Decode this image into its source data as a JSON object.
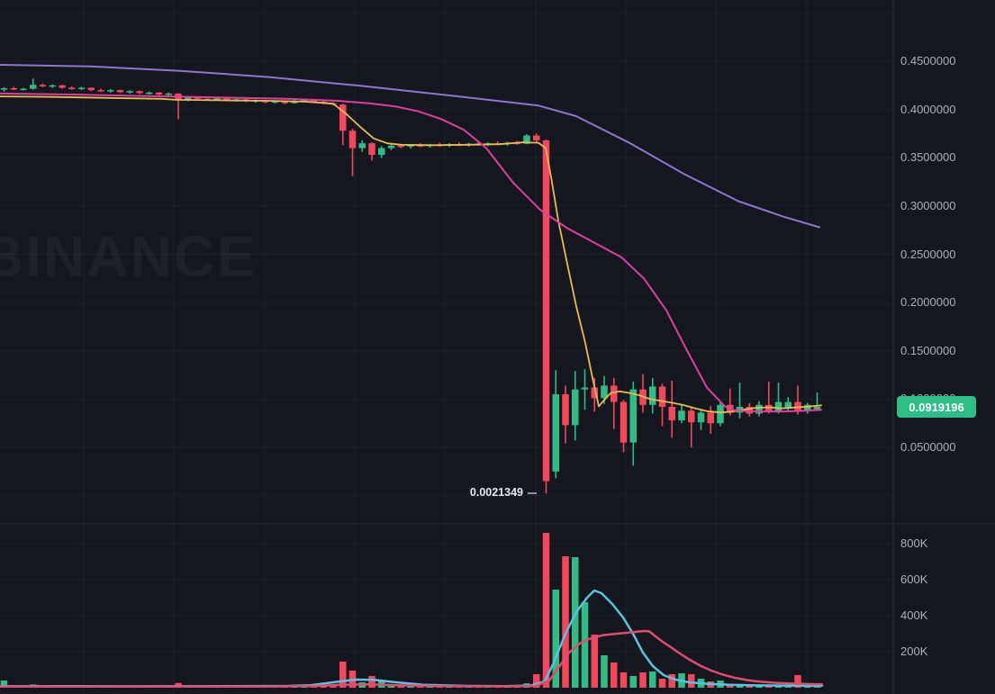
{
  "watermark": "BINANCE",
  "last_price_label": "0.0919196",
  "colors": {
    "background": "#14171e",
    "grid": "rgba(160,172,196,0.07)",
    "axis_line": "#2a2e38",
    "axis_text": "#a9b0bd",
    "up": "#2ebd85",
    "down": "#f6465d",
    "ma_yellow": "#e9bb4f",
    "ma_pink": "#df3da4",
    "ma_purple": "#9273d4",
    "vol_cyan": "#56c4e2",
    "vol_rose": "#e34b70",
    "badge_bg": "#2ebd85",
    "badge_text": "#ffffff",
    "low_label_text": "#e6e9f0"
  },
  "chart_data": {
    "type": "candlestick",
    "exchange_watermark": "BINANCE",
    "last_price": 0.0919196,
    "session_low": {
      "label": "0.0021349",
      "price": 0.0021349
    },
    "price_axis": {
      "ticks": [
        {
          "label": "0.4500000",
          "price": 0.45
        },
        {
          "label": "0.4000000",
          "price": 0.4
        },
        {
          "label": "0.3500000",
          "price": 0.35
        },
        {
          "label": "0.3000000",
          "price": 0.3
        },
        {
          "label": "0.2500000",
          "price": 0.25
        },
        {
          "label": "0.2000000",
          "price": 0.2
        },
        {
          "label": "0.1500000",
          "price": 0.15
        },
        {
          "label": "0.1000000",
          "price": 0.1
        },
        {
          "label": "0.0500000",
          "price": 0.05
        }
      ],
      "gridline_prices": [
        0.5,
        0.45,
        0.4,
        0.35,
        0.3,
        0.25,
        0.2,
        0.15,
        0.1,
        0.05,
        0.0
      ]
    },
    "volume_axis": {
      "unit": "K",
      "ticks": [
        {
          "label": "800K",
          "value": 800
        },
        {
          "label": "600K",
          "value": 600
        },
        {
          "label": "400K",
          "value": 400
        },
        {
          "label": "200K",
          "value": 200
        }
      ]
    },
    "candles_format": [
      "open",
      "high",
      "low",
      "close",
      "volume_K"
    ],
    "candles": [
      [
        0.4205,
        0.423,
        0.4185,
        0.422,
        40
      ],
      [
        0.422,
        0.4235,
        0.42,
        0.421,
        12
      ],
      [
        0.421,
        0.4225,
        0.4195,
        0.4215,
        10
      ],
      [
        0.4215,
        0.432,
        0.4205,
        0.4255,
        18
      ],
      [
        0.4255,
        0.427,
        0.423,
        0.424,
        10
      ],
      [
        0.424,
        0.426,
        0.4225,
        0.425,
        9
      ],
      [
        0.425,
        0.4255,
        0.4215,
        0.4225,
        11
      ],
      [
        0.4225,
        0.424,
        0.4205,
        0.4215,
        10
      ],
      [
        0.4215,
        0.4235,
        0.42,
        0.4225,
        9
      ],
      [
        0.4225,
        0.423,
        0.419,
        0.42,
        12
      ],
      [
        0.42,
        0.4215,
        0.418,
        0.419,
        10
      ],
      [
        0.419,
        0.421,
        0.4175,
        0.42,
        9
      ],
      [
        0.42,
        0.4205,
        0.417,
        0.418,
        10
      ],
      [
        0.418,
        0.42,
        0.4165,
        0.419,
        8
      ],
      [
        0.419,
        0.4195,
        0.416,
        0.417,
        10
      ],
      [
        0.417,
        0.4185,
        0.4155,
        0.4175,
        9
      ],
      [
        0.4175,
        0.418,
        0.4145,
        0.4155,
        11
      ],
      [
        0.4155,
        0.4175,
        0.414,
        0.4165,
        9
      ],
      [
        0.4165,
        0.417,
        0.39,
        0.41,
        26
      ],
      [
        0.41,
        0.414,
        0.4085,
        0.4125,
        14
      ],
      [
        0.4125,
        0.4135,
        0.41,
        0.411,
        10
      ],
      [
        0.411,
        0.4125,
        0.4095,
        0.4105,
        9
      ],
      [
        0.4105,
        0.412,
        0.409,
        0.4115,
        8
      ],
      [
        0.4115,
        0.412,
        0.4085,
        0.4095,
        10
      ],
      [
        0.4095,
        0.4115,
        0.408,
        0.4105,
        8
      ],
      [
        0.4105,
        0.411,
        0.4075,
        0.4085,
        9
      ],
      [
        0.4085,
        0.4105,
        0.407,
        0.4095,
        8
      ],
      [
        0.4095,
        0.41,
        0.4065,
        0.4075,
        10
      ],
      [
        0.4075,
        0.4095,
        0.406,
        0.4085,
        8
      ],
      [
        0.4085,
        0.409,
        0.4055,
        0.4065,
        9
      ],
      [
        0.4065,
        0.41,
        0.406,
        0.409,
        12
      ],
      [
        0.409,
        0.411,
        0.408,
        0.41,
        11
      ],
      [
        0.41,
        0.4105,
        0.407,
        0.408,
        10
      ],
      [
        0.408,
        0.409,
        0.4055,
        0.4065,
        9
      ],
      [
        0.4065,
        0.4075,
        0.404,
        0.405,
        14
      ],
      [
        0.405,
        0.406,
        0.363,
        0.378,
        145
      ],
      [
        0.378,
        0.38,
        0.331,
        0.36,
        95
      ],
      [
        0.36,
        0.368,
        0.356,
        0.365,
        30
      ],
      [
        0.365,
        0.366,
        0.347,
        0.353,
        65
      ],
      [
        0.353,
        0.362,
        0.35,
        0.36,
        35
      ],
      [
        0.36,
        0.364,
        0.358,
        0.3625,
        18
      ],
      [
        0.3625,
        0.3645,
        0.36,
        0.3615,
        12
      ],
      [
        0.3615,
        0.364,
        0.3595,
        0.363,
        10
      ],
      [
        0.363,
        0.365,
        0.361,
        0.362,
        9
      ],
      [
        0.362,
        0.3645,
        0.3605,
        0.3635,
        8
      ],
      [
        0.3635,
        0.3655,
        0.3615,
        0.3625,
        9
      ],
      [
        0.3625,
        0.365,
        0.361,
        0.364,
        8
      ],
      [
        0.364,
        0.366,
        0.362,
        0.363,
        8
      ],
      [
        0.363,
        0.3655,
        0.3615,
        0.3645,
        7
      ],
      [
        0.3645,
        0.3665,
        0.3625,
        0.3635,
        8
      ],
      [
        0.3635,
        0.366,
        0.362,
        0.365,
        7
      ],
      [
        0.365,
        0.367,
        0.363,
        0.364,
        8
      ],
      [
        0.364,
        0.3665,
        0.3625,
        0.3655,
        7
      ],
      [
        0.3655,
        0.3675,
        0.3635,
        0.3645,
        8
      ],
      [
        0.3645,
        0.3745,
        0.364,
        0.373,
        24
      ],
      [
        0.373,
        0.375,
        0.3655,
        0.368,
        75
      ],
      [
        0.368,
        0.369,
        0.0021349,
        0.015,
        860
      ],
      [
        0.025,
        0.13,
        0.018,
        0.105,
        545
      ],
      [
        0.105,
        0.114,
        0.054,
        0.073,
        730
      ],
      [
        0.073,
        0.129,
        0.057,
        0.11,
        725
      ],
      [
        0.11,
        0.131,
        0.089,
        0.112,
        475
      ],
      [
        0.112,
        0.122,
        0.087,
        0.101,
        295
      ],
      [
        0.101,
        0.124,
        0.095,
        0.114,
        180
      ],
      [
        0.114,
        0.122,
        0.069,
        0.097,
        140
      ],
      [
        0.097,
        0.099,
        0.045,
        0.055,
        85
      ],
      [
        0.055,
        0.118,
        0.031,
        0.11,
        65
      ],
      [
        0.11,
        0.126,
        0.086,
        0.094,
        85
      ],
      [
        0.094,
        0.122,
        0.085,
        0.113,
        90
      ],
      [
        0.113,
        0.116,
        0.072,
        0.092,
        50
      ],
      [
        0.092,
        0.119,
        0.06,
        0.078,
        75
      ],
      [
        0.078,
        0.095,
        0.075,
        0.088,
        80
      ],
      [
        0.088,
        0.092,
        0.05,
        0.076,
        75
      ],
      [
        0.076,
        0.09,
        0.068,
        0.086,
        50
      ],
      [
        0.086,
        0.093,
        0.064,
        0.075,
        35
      ],
      [
        0.075,
        0.098,
        0.072,
        0.094,
        40
      ],
      [
        0.094,
        0.111,
        0.083,
        0.086,
        22
      ],
      [
        0.086,
        0.117,
        0.08,
        0.092,
        18
      ],
      [
        0.092,
        0.096,
        0.082,
        0.085,
        15
      ],
      [
        0.085,
        0.098,
        0.082,
        0.094,
        14
      ],
      [
        0.094,
        0.118,
        0.085,
        0.087,
        13
      ],
      [
        0.087,
        0.117,
        0.085,
        0.097,
        12
      ],
      [
        0.09,
        0.102,
        0.087,
        0.097,
        12
      ],
      [
        0.097,
        0.114,
        0.084,
        0.088,
        70
      ],
      [
        0.088,
        0.096,
        0.085,
        0.094,
        15
      ],
      [
        0.0895,
        0.107,
        0.088,
        0.0919196,
        18
      ]
    ],
    "ma_overlays": [
      {
        "name": "ma-fast-yellow",
        "color_key": "ma_yellow",
        "width": 1.8,
        "points": [
          [
            0,
            0.4135
          ],
          [
            60,
            0.413
          ],
          [
            120,
            0.412
          ],
          [
            180,
            0.411
          ],
          [
            195,
            0.41
          ],
          [
            240,
            0.4095
          ],
          [
            300,
            0.409
          ],
          [
            340,
            0.408
          ],
          [
            370,
            0.406
          ],
          [
            385,
            0.395
          ],
          [
            400,
            0.382
          ],
          [
            415,
            0.37
          ],
          [
            430,
            0.365
          ],
          [
            445,
            0.3635
          ],
          [
            480,
            0.363
          ],
          [
            520,
            0.3635
          ],
          [
            555,
            0.364
          ],
          [
            580,
            0.366
          ],
          [
            598,
            0.3655
          ],
          [
            606,
            0.36
          ],
          [
            612,
            0.33
          ],
          [
            620,
            0.285
          ],
          [
            630,
            0.24
          ],
          [
            640,
            0.196
          ],
          [
            650,
            0.158
          ],
          [
            658,
            0.122
          ],
          [
            665,
            0.0925
          ],
          [
            670,
            0.098
          ],
          [
            678,
            0.106
          ],
          [
            688,
            0.108
          ],
          [
            698,
            0.1065
          ],
          [
            710,
            0.104
          ],
          [
            722,
            0.1
          ],
          [
            735,
            0.098
          ],
          [
            748,
            0.096
          ],
          [
            760,
            0.0935
          ],
          [
            772,
            0.0905
          ],
          [
            785,
            0.0875
          ],
          [
            800,
            0.0862
          ],
          [
            812,
            0.0868
          ],
          [
            825,
            0.089
          ],
          [
            840,
            0.091
          ],
          [
            855,
            0.0915
          ],
          [
            868,
            0.0905
          ],
          [
            880,
            0.0912
          ],
          [
            895,
            0.092
          ],
          [
            912,
            0.0935
          ]
        ]
      },
      {
        "name": "ma-mid-pink",
        "color_key": "ma_pink",
        "width": 2,
        "points": [
          [
            0,
            0.4165
          ],
          [
            80,
            0.4155
          ],
          [
            160,
            0.414
          ],
          [
            240,
            0.4125
          ],
          [
            320,
            0.411
          ],
          [
            375,
            0.409
          ],
          [
            410,
            0.4065
          ],
          [
            440,
            0.403
          ],
          [
            465,
            0.398
          ],
          [
            490,
            0.39
          ],
          [
            515,
            0.379
          ],
          [
            540,
            0.36
          ],
          [
            570,
            0.324
          ],
          [
            600,
            0.296
          ],
          [
            630,
            0.277
          ],
          [
            660,
            0.262
          ],
          [
            690,
            0.247
          ],
          [
            715,
            0.225
          ],
          [
            740,
            0.192
          ],
          [
            762,
            0.152
          ],
          [
            785,
            0.112
          ],
          [
            805,
            0.0925
          ],
          [
            815,
            0.0885
          ],
          [
            830,
            0.0875
          ],
          [
            850,
            0.0872
          ],
          [
            870,
            0.0872
          ],
          [
            890,
            0.0878
          ],
          [
            912,
            0.0888
          ]
        ]
      },
      {
        "name": "ma-slow-purple",
        "color_key": "ma_purple",
        "width": 2,
        "points": [
          [
            0,
            0.4463
          ],
          [
            100,
            0.4446
          ],
          [
            200,
            0.44
          ],
          [
            300,
            0.4335
          ],
          [
            400,
            0.4245
          ],
          [
            500,
            0.4145
          ],
          [
            598,
            0.404
          ],
          [
            640,
            0.393
          ],
          [
            700,
            0.365
          ],
          [
            760,
            0.333
          ],
          [
            820,
            0.305
          ],
          [
            870,
            0.289
          ],
          [
            910,
            0.278
          ]
        ]
      }
    ],
    "volume_lines": [
      {
        "name": "volume-ma-cyan",
        "color_key": "vol_cyan",
        "width": 2.5,
        "points": [
          [
            0,
            8
          ],
          [
            80,
            9
          ],
          [
            160,
            8
          ],
          [
            250,
            9
          ],
          [
            320,
            10
          ],
          [
            345,
            14
          ],
          [
            370,
            30
          ],
          [
            395,
            45
          ],
          [
            415,
            44
          ],
          [
            440,
            30
          ],
          [
            470,
            16
          ],
          [
            520,
            10
          ],
          [
            560,
            9
          ],
          [
            590,
            12
          ],
          [
            605,
            35
          ],
          [
            615,
            140
          ],
          [
            628,
            300
          ],
          [
            640,
            420
          ],
          [
            652,
            500
          ],
          [
            660,
            540
          ],
          [
            668,
            525
          ],
          [
            680,
            465
          ],
          [
            692,
            390
          ],
          [
            703,
            300
          ],
          [
            714,
            195
          ],
          [
            725,
            120
          ],
          [
            737,
            70
          ],
          [
            750,
            45
          ],
          [
            765,
            30
          ],
          [
            785,
            22
          ],
          [
            810,
            16
          ],
          [
            840,
            13
          ],
          [
            870,
            12
          ],
          [
            900,
            11
          ],
          [
            913,
            11
          ]
        ]
      },
      {
        "name": "volume-ma-rose",
        "color_key": "vol_rose",
        "width": 2.5,
        "points": [
          [
            0,
            6
          ],
          [
            100,
            6
          ],
          [
            200,
            7
          ],
          [
            300,
            7
          ],
          [
            350,
            10
          ],
          [
            380,
            16
          ],
          [
            410,
            19
          ],
          [
            440,
            14
          ],
          [
            480,
            10
          ],
          [
            530,
            8
          ],
          [
            570,
            8
          ],
          [
            595,
            10
          ],
          [
            610,
            40
          ],
          [
            620,
            110
          ],
          [
            632,
            195
          ],
          [
            645,
            250
          ],
          [
            658,
            278
          ],
          [
            670,
            292
          ],
          [
            685,
            300
          ],
          [
            700,
            307
          ],
          [
            715,
            315
          ],
          [
            721,
            313
          ],
          [
            728,
            285
          ],
          [
            736,
            255
          ],
          [
            745,
            225
          ],
          [
            755,
            190
          ],
          [
            766,
            155
          ],
          [
            778,
            122
          ],
          [
            790,
            95
          ],
          [
            803,
            72
          ],
          [
            816,
            55
          ],
          [
            830,
            42
          ],
          [
            845,
            33
          ],
          [
            862,
            27
          ],
          [
            880,
            23
          ],
          [
            900,
            20
          ],
          [
            913,
            19
          ]
        ]
      }
    ],
    "layout_hints": {
      "grid": true,
      "price_pane": "top",
      "volume_pane": "bottom",
      "axis_position": "right"
    }
  }
}
